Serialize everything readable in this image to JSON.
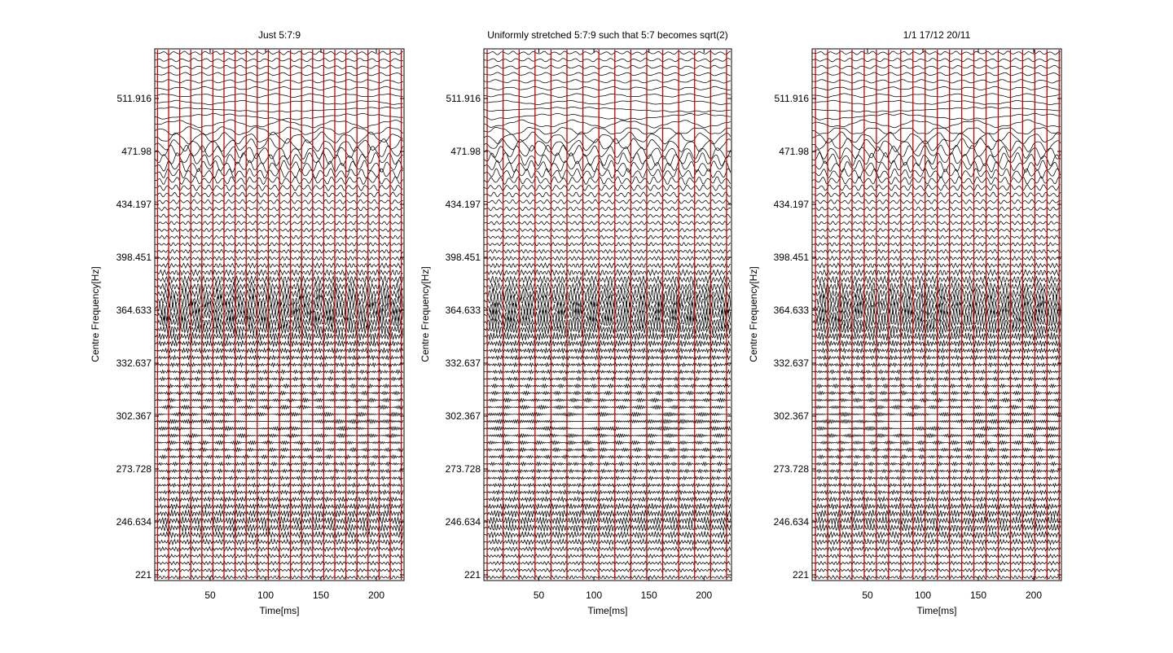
{
  "chart_data": [
    {
      "type": "line",
      "title": "Just 5:7:9",
      "xlabel": "Time[ms]",
      "ylabel": "Centre Frequency[Hz]",
      "xlim": [
        0,
        225
      ],
      "x_ticks": [
        50,
        100,
        150,
        200
      ],
      "y_ticks": [
        "221",
        "246.634",
        "273.728",
        "302.367",
        "332.637",
        "364.633",
        "398.451",
        "434.197",
        "471.98",
        "511.916"
      ],
      "channels": 75,
      "dense_bands": [
        "471.98",
        "364.633",
        "246.634"
      ],
      "red_lines_ms": [
        2.5,
        12.5,
        22.5,
        32.5,
        42.5,
        52.5,
        62.5,
        72.5,
        82.5,
        92.5,
        102.5,
        112.5,
        122.5,
        132.5,
        142.5,
        152.5,
        162.5,
        172.5,
        182.5,
        192.5,
        202.5,
        212.5,
        222.5
      ],
      "trace_color": "#000000",
      "marker_color": "#cc0000"
    },
    {
      "type": "line",
      "title": "Uniformly stretched 5:7:9 such that 5:7 becomes sqrt(2)",
      "xlabel": "Time[ms]",
      "ylabel": "Centre Frequency[Hz]",
      "xlim": [
        0,
        225
      ],
      "x_ticks": [
        50,
        100,
        150,
        200
      ],
      "y_ticks": [
        "221",
        "246.634",
        "273.728",
        "302.367",
        "332.637",
        "364.633",
        "398.451",
        "434.197",
        "471.98",
        "511.916"
      ],
      "channels": 75,
      "dense_bands": [
        "471.98",
        "364.633",
        "246.634"
      ],
      "red_lines_ms": [
        3,
        17.5,
        32,
        46.5,
        61,
        75.5,
        90,
        104.5,
        119,
        133.5,
        148,
        162.5,
        177,
        191.5,
        206,
        220.5
      ],
      "trace_color": "#000000",
      "marker_color": "#cc0000"
    },
    {
      "type": "line",
      "title": "1/1 17/12 20/11",
      "xlabel": "Time[ms]",
      "ylabel": "Centre Frequency[Hz]",
      "xlim": [
        0,
        225
      ],
      "x_ticks": [
        50,
        100,
        150,
        200
      ],
      "y_ticks": [
        "221",
        "246.634",
        "273.728",
        "302.367",
        "332.637",
        "364.633",
        "398.451",
        "434.197",
        "471.98",
        "511.916"
      ],
      "channels": 75,
      "dense_bands": [
        "471.98",
        "364.633",
        "246.634"
      ],
      "red_lines_ms": [
        3,
        14,
        25,
        36,
        47,
        58,
        69,
        80,
        91,
        102,
        113,
        124,
        135,
        146,
        157,
        168,
        179,
        190,
        201,
        212,
        223
      ],
      "trace_color": "#000000",
      "marker_color": "#cc0000"
    }
  ]
}
